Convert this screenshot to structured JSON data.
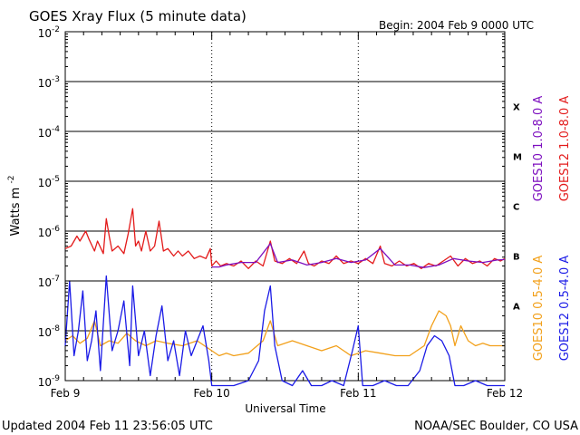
{
  "header": {
    "title": "GOES Xray Flux (5 minute data)",
    "begin": "Begin:  2004 Feb 9 0000 UTC"
  },
  "footer": {
    "updated": "Updated 2004 Feb 11 23:56:05 UTC",
    "credit": "NOAA/SEC Boulder, CO USA"
  },
  "chart_data": {
    "type": "line",
    "title": "GOES Xray Flux (5 minute data)",
    "xlabel": "Universal Time",
    "ylabel_main": "Watts m",
    "ylabel_exp": "-2",
    "x_ticks": [
      "Feb 9",
      "Feb 10",
      "Feb 11",
      "Feb 12"
    ],
    "xlim_days": [
      0,
      3
    ],
    "ylim": [
      1e-09,
      0.01
    ],
    "y_scale": "log",
    "y_ticks": [
      {
        "base": "10",
        "exp": "-9"
      },
      {
        "base": "10",
        "exp": "-8"
      },
      {
        "base": "10",
        "exp": "-7"
      },
      {
        "base": "10",
        "exp": "-6"
      },
      {
        "base": "10",
        "exp": "-5"
      },
      {
        "base": "10",
        "exp": "-4"
      },
      {
        "base": "10",
        "exp": "-3"
      },
      {
        "base": "10",
        "exp": "-2"
      }
    ],
    "flare_classes": [
      {
        "label": "A",
        "log_center": -7.5
      },
      {
        "label": "B",
        "log_center": -6.5
      },
      {
        "label": "C",
        "log_center": -5.5
      },
      {
        "label": "M",
        "log_center": -4.5
      },
      {
        "label": "X",
        "log_center": -3.5
      }
    ],
    "legend_right": [
      {
        "label": "GOES10 1.0-8.0 A",
        "color": "#7d0fbf"
      },
      {
        "label": "GOES12 1.0-8.0 A",
        "color": "#e31b1b"
      },
      {
        "label": "GOES10 0.5-4.0 A",
        "color": "#f2a01a"
      },
      {
        "label": "GOES12 0.5-4.0 A",
        "color": "#1a1ae6"
      }
    ],
    "series": [
      {
        "name": "GOES12 1.0-8.0 A",
        "color": "#e31b1b",
        "log_points": [
          [
            0.0,
            -6.35
          ],
          [
            0.04,
            -6.3
          ],
          [
            0.08,
            -6.1
          ],
          [
            0.1,
            -6.2
          ],
          [
            0.14,
            -6.0
          ],
          [
            0.16,
            -6.15
          ],
          [
            0.2,
            -6.4
          ],
          [
            0.22,
            -6.2
          ],
          [
            0.26,
            -6.45
          ],
          [
            0.28,
            -5.75
          ],
          [
            0.3,
            -6.1
          ],
          [
            0.32,
            -6.4
          ],
          [
            0.36,
            -6.3
          ],
          [
            0.4,
            -6.45
          ],
          [
            0.43,
            -6.05
          ],
          [
            0.46,
            -5.55
          ],
          [
            0.48,
            -6.3
          ],
          [
            0.5,
            -6.2
          ],
          [
            0.52,
            -6.4
          ],
          [
            0.55,
            -6.0
          ],
          [
            0.58,
            -6.4
          ],
          [
            0.61,
            -6.3
          ],
          [
            0.64,
            -5.8
          ],
          [
            0.67,
            -6.4
          ],
          [
            0.7,
            -6.35
          ],
          [
            0.74,
            -6.5
          ],
          [
            0.77,
            -6.4
          ],
          [
            0.8,
            -6.5
          ],
          [
            0.84,
            -6.4
          ],
          [
            0.88,
            -6.55
          ],
          [
            0.92,
            -6.5
          ],
          [
            0.96,
            -6.55
          ],
          [
            0.99,
            -6.35
          ],
          [
            1.0,
            -6.7
          ],
          [
            1.03,
            -6.6
          ],
          [
            1.06,
            -6.7
          ],
          [
            1.1,
            -6.65
          ],
          [
            1.15,
            -6.7
          ],
          [
            1.2,
            -6.6
          ],
          [
            1.25,
            -6.75
          ],
          [
            1.3,
            -6.6
          ],
          [
            1.35,
            -6.7
          ],
          [
            1.4,
            -6.2
          ],
          [
            1.43,
            -6.6
          ],
          [
            1.48,
            -6.65
          ],
          [
            1.53,
            -6.55
          ],
          [
            1.58,
            -6.65
          ],
          [
            1.63,
            -6.4
          ],
          [
            1.66,
            -6.65
          ],
          [
            1.7,
            -6.7
          ],
          [
            1.75,
            -6.6
          ],
          [
            1.8,
            -6.65
          ],
          [
            1.85,
            -6.5
          ],
          [
            1.9,
            -6.65
          ],
          [
            1.95,
            -6.6
          ],
          [
            2.0,
            -6.65
          ],
          [
            2.05,
            -6.55
          ],
          [
            2.1,
            -6.65
          ],
          [
            2.15,
            -6.3
          ],
          [
            2.18,
            -6.65
          ],
          [
            2.23,
            -6.7
          ],
          [
            2.28,
            -6.6
          ],
          [
            2.33,
            -6.7
          ],
          [
            2.38,
            -6.65
          ],
          [
            2.43,
            -6.75
          ],
          [
            2.48,
            -6.65
          ],
          [
            2.53,
            -6.7
          ],
          [
            2.58,
            -6.6
          ],
          [
            2.63,
            -6.5
          ],
          [
            2.68,
            -6.7
          ],
          [
            2.73,
            -6.55
          ],
          [
            2.78,
            -6.65
          ],
          [
            2.83,
            -6.6
          ],
          [
            2.88,
            -6.7
          ],
          [
            2.93,
            -6.55
          ],
          [
            2.97,
            -6.6
          ],
          [
            3.0,
            -6.55
          ]
        ]
      },
      {
        "name": "GOES10 1.0-8.0 A",
        "color": "#7d0fbf",
        "log_points": [
          [
            1.0,
            -6.72
          ],
          [
            1.05,
            -6.72
          ],
          [
            1.1,
            -6.68
          ],
          [
            1.2,
            -6.63
          ],
          [
            1.3,
            -6.63
          ],
          [
            1.4,
            -6.25
          ],
          [
            1.45,
            -6.63
          ],
          [
            1.55,
            -6.58
          ],
          [
            1.65,
            -6.68
          ],
          [
            1.75,
            -6.63
          ],
          [
            1.85,
            -6.55
          ],
          [
            1.95,
            -6.63
          ],
          [
            2.05,
            -6.58
          ],
          [
            2.15,
            -6.35
          ],
          [
            2.25,
            -6.68
          ],
          [
            2.35,
            -6.68
          ],
          [
            2.45,
            -6.73
          ],
          [
            2.55,
            -6.68
          ],
          [
            2.65,
            -6.55
          ],
          [
            2.75,
            -6.6
          ],
          [
            2.85,
            -6.63
          ],
          [
            2.95,
            -6.58
          ],
          [
            3.0,
            -6.57
          ]
        ]
      },
      {
        "name": "GOES10 0.5-4.0 A",
        "color": "#f2a01a",
        "log_points": [
          [
            0.0,
            -8.2
          ],
          [
            0.05,
            -8.1
          ],
          [
            0.1,
            -8.25
          ],
          [
            0.15,
            -8.15
          ],
          [
            0.2,
            -7.8
          ],
          [
            0.24,
            -8.3
          ],
          [
            0.3,
            -8.2
          ],
          [
            0.36,
            -8.25
          ],
          [
            0.42,
            -8.05
          ],
          [
            0.48,
            -8.2
          ],
          [
            0.55,
            -8.3
          ],
          [
            0.62,
            -8.2
          ],
          [
            0.7,
            -8.25
          ],
          [
            0.8,
            -8.3
          ],
          [
            0.9,
            -8.2
          ],
          [
            1.0,
            -8.4
          ],
          [
            1.05,
            -8.5
          ],
          [
            1.1,
            -8.45
          ],
          [
            1.15,
            -8.5
          ],
          [
            1.25,
            -8.45
          ],
          [
            1.35,
            -8.2
          ],
          [
            1.4,
            -7.8
          ],
          [
            1.45,
            -8.3
          ],
          [
            1.55,
            -8.2
          ],
          [
            1.65,
            -8.3
          ],
          [
            1.75,
            -8.4
          ],
          [
            1.85,
            -8.3
          ],
          [
            1.95,
            -8.5
          ],
          [
            2.05,
            -8.4
          ],
          [
            2.15,
            -8.45
          ],
          [
            2.25,
            -8.5
          ],
          [
            2.35,
            -8.5
          ],
          [
            2.45,
            -8.3
          ],
          [
            2.5,
            -7.9
          ],
          [
            2.55,
            -7.6
          ],
          [
            2.6,
            -7.7
          ],
          [
            2.63,
            -7.9
          ],
          [
            2.66,
            -8.3
          ],
          [
            2.7,
            -7.9
          ],
          [
            2.75,
            -8.2
          ],
          [
            2.8,
            -8.3
          ],
          [
            2.85,
            -8.25
          ],
          [
            2.9,
            -8.3
          ],
          [
            3.0,
            -8.3
          ]
        ]
      },
      {
        "name": "GOES12 0.5-4.0 A",
        "color": "#1a1ae6",
        "log_points": [
          [
            0.0,
            -8.3
          ],
          [
            0.03,
            -7.0
          ],
          [
            0.06,
            -8.5
          ],
          [
            0.09,
            -8.0
          ],
          [
            0.12,
            -7.2
          ],
          [
            0.15,
            -8.6
          ],
          [
            0.18,
            -8.2
          ],
          [
            0.21,
            -7.6
          ],
          [
            0.24,
            -8.8
          ],
          [
            0.28,
            -6.9
          ],
          [
            0.32,
            -8.4
          ],
          [
            0.36,
            -8.0
          ],
          [
            0.4,
            -7.4
          ],
          [
            0.44,
            -8.7
          ],
          [
            0.46,
            -7.1
          ],
          [
            0.5,
            -8.5
          ],
          [
            0.54,
            -8.0
          ],
          [
            0.58,
            -8.9
          ],
          [
            0.62,
            -8.1
          ],
          [
            0.66,
            -7.5
          ],
          [
            0.7,
            -8.6
          ],
          [
            0.74,
            -8.2
          ],
          [
            0.78,
            -8.9
          ],
          [
            0.82,
            -8.0
          ],
          [
            0.86,
            -8.5
          ],
          [
            0.9,
            -8.2
          ],
          [
            0.94,
            -7.9
          ],
          [
            0.98,
            -8.6
          ],
          [
            1.0,
            -9.1
          ],
          [
            1.05,
            -9.1
          ],
          [
            1.15,
            -9.1
          ],
          [
            1.25,
            -9.0
          ],
          [
            1.32,
            -8.6
          ],
          [
            1.36,
            -7.6
          ],
          [
            1.4,
            -7.1
          ],
          [
            1.43,
            -8.3
          ],
          [
            1.48,
            -9.0
          ],
          [
            1.55,
            -9.1
          ],
          [
            1.62,
            -8.8
          ],
          [
            1.68,
            -9.1
          ],
          [
            1.75,
            -9.1
          ],
          [
            1.82,
            -9.0
          ],
          [
            1.9,
            -9.1
          ],
          [
            1.96,
            -8.4
          ],
          [
            2.0,
            -7.9
          ],
          [
            2.03,
            -9.1
          ],
          [
            2.1,
            -9.1
          ],
          [
            2.18,
            -9.0
          ],
          [
            2.26,
            -9.1
          ],
          [
            2.34,
            -9.1
          ],
          [
            2.42,
            -8.8
          ],
          [
            2.47,
            -8.3
          ],
          [
            2.52,
            -8.1
          ],
          [
            2.57,
            -8.2
          ],
          [
            2.62,
            -8.5
          ],
          [
            2.66,
            -9.1
          ],
          [
            2.72,
            -9.1
          ],
          [
            2.8,
            -9.0
          ],
          [
            2.88,
            -9.1
          ],
          [
            2.95,
            -9.1
          ],
          [
            3.0,
            -9.1
          ]
        ]
      }
    ]
  }
}
